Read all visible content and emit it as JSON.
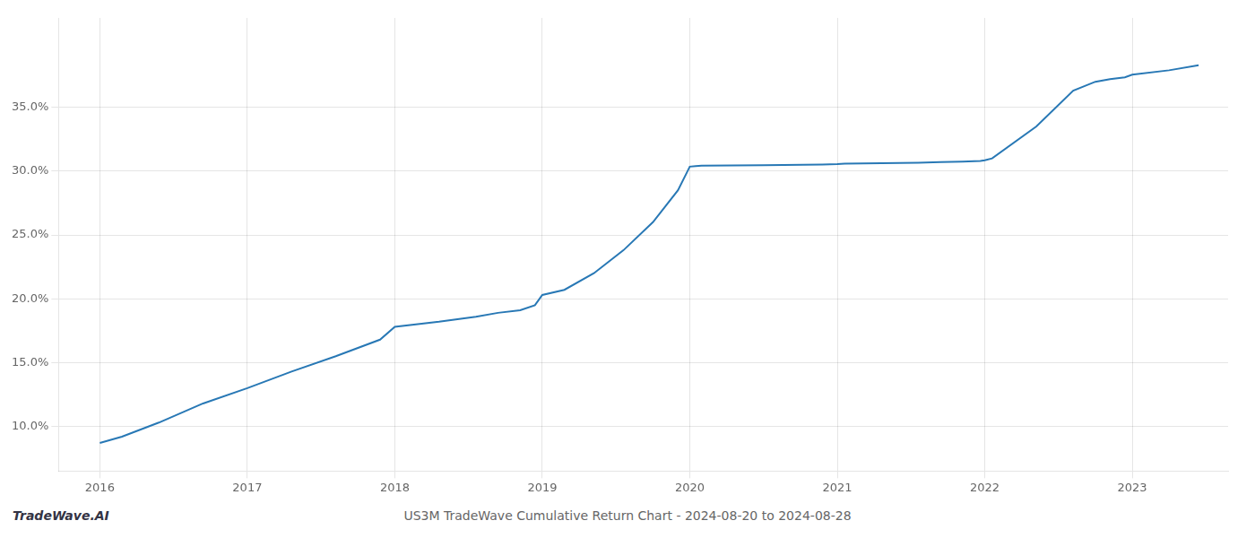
{
  "chart_data": {
    "type": "line",
    "annotations": [
      "TradeWave.AI",
      "US3M TradeWave Cumulative Return Chart - 2024-08-20 to 2024-08-28"
    ],
    "x": [
      2016.0,
      2016.15,
      2016.4,
      2016.7,
      2017.0,
      2017.3,
      2017.6,
      2017.9,
      2018.0,
      2018.3,
      2018.55,
      2018.7,
      2018.85,
      2018.95,
      2019.0,
      2019.15,
      2019.35,
      2019.55,
      2019.75,
      2019.92,
      2020.0,
      2020.04,
      2020.08,
      2020.5,
      2020.9,
      2021.0,
      2021.05,
      2021.55,
      2021.7,
      2021.85,
      2021.97,
      2022.0,
      2022.05,
      2022.35,
      2022.6,
      2022.75,
      2022.85,
      2022.95,
      2023.0,
      2023.25,
      2023.45
    ],
    "values": [
      8.7,
      9.2,
      10.3,
      11.8,
      13.0,
      14.3,
      15.5,
      16.8,
      17.8,
      18.2,
      18.6,
      18.9,
      19.1,
      19.5,
      20.3,
      20.7,
      22.0,
      23.8,
      26.0,
      28.5,
      30.35,
      30.4,
      30.42,
      30.47,
      30.52,
      30.55,
      30.58,
      30.65,
      30.7,
      30.75,
      30.8,
      30.85,
      31.0,
      33.5,
      36.3,
      37.0,
      37.2,
      37.35,
      37.55,
      37.9,
      38.3
    ],
    "color": "#2878b5",
    "xlim": [
      2015.72,
      2023.65
    ],
    "xticks": [
      2016,
      2017,
      2018,
      2019,
      2020,
      2021,
      2022,
      2023
    ],
    "ylim": [
      6.5,
      42.0
    ],
    "yticks": [
      {
        "value": 10.0,
        "label": "10.0%"
      },
      {
        "value": 15.0,
        "label": "15.0%"
      },
      {
        "value": 20.0,
        "label": "20.0%"
      },
      {
        "value": 25.0,
        "label": "25.0%"
      },
      {
        "value": 30.0,
        "label": "30.0%"
      },
      {
        "value": 35.0,
        "label": "35.0%"
      }
    ],
    "grid": true
  }
}
